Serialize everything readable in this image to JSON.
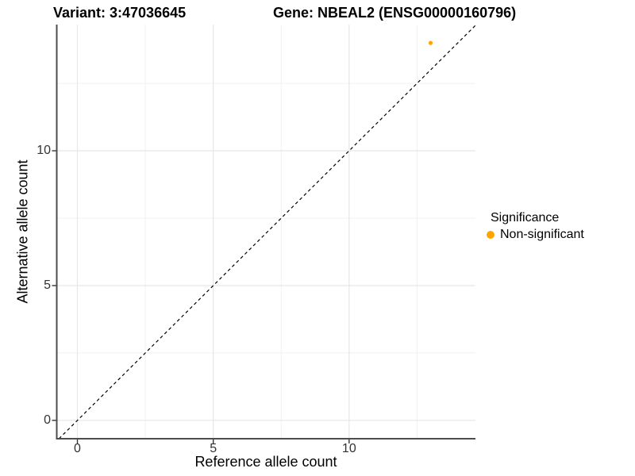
{
  "chart_data": {
    "type": "scatter",
    "title_left": "Variant: 3:47036645",
    "title_right": "Gene: NBEAL2 (ENSG00000160796)",
    "xlabel": "Reference allele count",
    "ylabel": "Alternative allele count",
    "x_ticks": [
      0,
      5,
      10
    ],
    "y_ticks": [
      0,
      5,
      10
    ],
    "x_minor_ticks": [
      2.5,
      7.5,
      12.5
    ],
    "y_minor_ticks": [
      2.5,
      7.5,
      12.5
    ],
    "xlim": [
      -0.76,
      14.65
    ],
    "ylim": [
      -0.68,
      14.68
    ],
    "grid": true,
    "identity_line": {
      "slope": 1,
      "intercept": 0,
      "style": "dashed",
      "color": "#000000"
    },
    "points": [
      {
        "x": 13,
        "y": 14,
        "series": "Non-significant",
        "color": "#FFA500",
        "radius": 2.6
      }
    ],
    "legend": {
      "title": "Significance",
      "position": "right",
      "items": [
        {
          "label": "Non-significant",
          "color": "#FFA500"
        }
      ]
    },
    "colors": {
      "point": "#FFA500",
      "axis_line": "#4D4D4D",
      "tick_mark": "#333333",
      "grid_major": "#E8E8E8",
      "grid_minor": "#F1F1F1",
      "background": "#FFFFFF"
    }
  }
}
